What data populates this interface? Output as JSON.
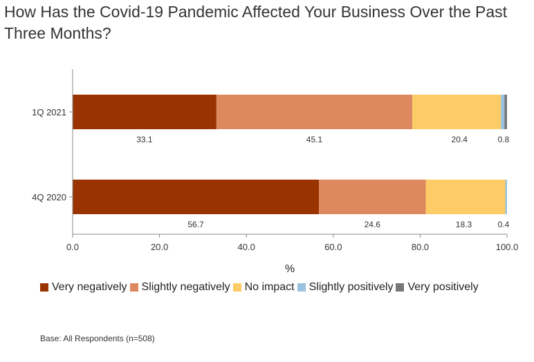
{
  "chart_data": {
    "type": "bar",
    "orientation": "horizontal",
    "stacked": true,
    "title": "How Has the Covid-19 Pandemic Affected Your Business Over the Past Three Months?",
    "xlabel": "%",
    "xlim": [
      0,
      100
    ],
    "xticks": [
      "0.0",
      "20.0",
      "40.0",
      "60.0",
      "80.0",
      "100.0"
    ],
    "categories": [
      "1Q 2021",
      "4Q 2020"
    ],
    "series": [
      {
        "name": "Very negatively",
        "color": "#993300",
        "values": [
          33.1,
          56.7
        ],
        "labels": [
          "33.1",
          "56.7"
        ]
      },
      {
        "name": "Slightly negatively",
        "color": "#de8860",
        "values": [
          45.1,
          24.6
        ],
        "labels": [
          "45.1",
          "24.6"
        ]
      },
      {
        "name": "No impact",
        "color": "#fdcc66",
        "values": [
          20.4,
          18.3
        ],
        "labels": [
          "20.4",
          "18.3"
        ]
      },
      {
        "name": "Slightly positively",
        "color": "#99c2de",
        "values": [
          0.8,
          0.4
        ],
        "labels": [
          "0.8",
          "0.4"
        ]
      },
      {
        "name": "Very positively",
        "color": "#777777",
        "values": [
          0.6,
          0.0
        ],
        "labels": [
          "",
          ""
        ]
      }
    ],
    "legend_position": "bottom-left"
  },
  "footnote": "Base: All Respondents (n=508)"
}
